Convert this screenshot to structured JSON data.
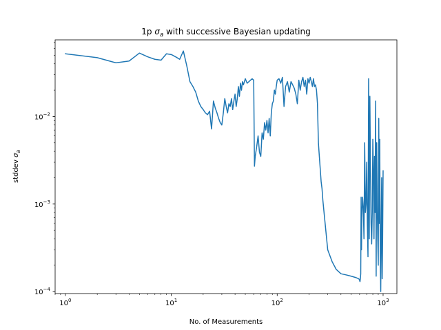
{
  "chart_data": {
    "type": "line",
    "title": "1p σₐ with successive Bayesian updating",
    "title_parts": {
      "pre": "1p ",
      "sym": "σ",
      "sub": "a",
      "post": " with successive Bayesian updating"
    },
    "xlabel": "No. of Measurements",
    "ylabel": "stddev σₐ",
    "ylabel_parts": {
      "pre": "stddev ",
      "sym": "σ",
      "sub": "a"
    },
    "xscale": "log",
    "yscale": "log",
    "xlim": [
      0.8,
      1350
    ],
    "ylim": [
      9.5e-05,
      0.075
    ],
    "grid": false,
    "color": "#1f77b4",
    "x_ticks": [
      {
        "value": 1,
        "base": "10",
        "exp": "0"
      },
      {
        "value": 10,
        "base": "10",
        "exp": "1"
      },
      {
        "value": 100,
        "base": "10",
        "exp": "2"
      },
      {
        "value": 1000,
        "base": "10",
        "exp": "3"
      }
    ],
    "y_ticks": [
      {
        "value": 0.0001,
        "base": "10",
        "exp": "−4"
      },
      {
        "value": 0.001,
        "base": "10",
        "exp": "−3"
      },
      {
        "value": 0.01,
        "base": "10",
        "exp": "−2"
      }
    ],
    "series": [
      {
        "x": [
          1,
          2,
          3,
          4,
          5,
          6,
          7,
          8,
          9,
          10,
          11,
          12,
          13,
          14,
          15,
          16,
          17,
          18,
          19,
          20,
          21,
          22,
          23,
          24,
          25,
          26,
          27,
          28,
          29,
          30,
          31,
          32,
          33,
          34,
          35,
          36,
          37,
          38,
          39,
          40,
          41,
          42,
          43,
          44,
          45,
          46,
          47,
          48,
          50,
          52,
          54,
          56,
          58,
          60,
          61,
          62,
          64,
          66,
          68,
          70,
          72,
          74,
          76,
          78,
          80,
          82,
          84,
          86,
          88,
          90,
          92,
          94,
          96,
          98,
          100,
          104,
          108,
          112,
          116,
          120,
          125,
          130,
          135,
          140,
          145,
          150,
          155,
          160,
          165,
          170,
          175,
          180,
          185,
          190,
          195,
          200,
          205,
          210,
          215,
          220,
          225,
          230,
          235,
          240,
          245,
          250,
          255,
          260,
          265,
          270,
          280,
          300,
          330,
          360,
          400,
          450,
          500,
          550,
          590,
          600,
          605,
          610,
          615,
          620,
          625,
          630,
          640,
          650,
          660,
          670,
          680,
          690,
          700,
          710,
          720,
          730,
          740,
          750,
          760,
          770,
          780,
          790,
          800,
          810,
          820,
          830,
          840,
          850,
          860,
          870,
          880,
          890,
          900,
          910,
          920,
          930,
          940,
          950,
          960,
          970,
          980,
          990,
          1000
        ],
        "y": [
          0.052,
          0.047,
          0.041,
          0.043,
          0.053,
          0.048,
          0.045,
          0.044,
          0.052,
          0.051,
          0.048,
          0.045,
          0.056,
          0.038,
          0.025,
          0.022,
          0.019,
          0.015,
          0.013,
          0.012,
          0.011,
          0.0105,
          0.0115,
          0.0072,
          0.015,
          0.0125,
          0.011,
          0.0095,
          0.0085,
          0.008,
          0.011,
          0.016,
          0.013,
          0.011,
          0.014,
          0.013,
          0.016,
          0.012,
          0.015,
          0.018,
          0.013,
          0.016,
          0.022,
          0.017,
          0.024,
          0.02,
          0.025,
          0.023,
          0.027,
          0.024,
          0.025,
          0.026,
          0.027,
          0.026,
          0.0027,
          0.0035,
          0.0045,
          0.006,
          0.0039,
          0.0035,
          0.0065,
          0.0055,
          0.0085,
          0.007,
          0.009,
          0.0065,
          0.0095,
          0.006,
          0.011,
          0.014,
          0.015,
          0.02,
          0.018,
          0.022,
          0.026,
          0.027,
          0.024,
          0.028,
          0.013,
          0.022,
          0.025,
          0.019,
          0.025,
          0.023,
          0.021,
          0.018,
          0.014,
          0.026,
          0.02,
          0.025,
          0.028,
          0.022,
          0.026,
          0.018,
          0.027,
          0.024,
          0.028,
          0.025,
          0.022,
          0.027,
          0.022,
          0.023,
          0.02,
          0.014,
          0.005,
          0.0035,
          0.0025,
          0.0018,
          0.0015,
          0.0011,
          0.0007,
          0.0003,
          0.00022,
          0.00018,
          0.00016,
          0.000155,
          0.00015,
          0.000145,
          0.00014,
          0.000135,
          0.00013,
          0.00014,
          0.00016,
          0.0012,
          0.0003,
          0.0007,
          0.0012,
          0.0009,
          0.0004,
          0.005,
          0.0008,
          0.001,
          0.003,
          0.0006,
          0.00025,
          0.027,
          0.0004,
          0.017,
          0.0025,
          0.0006,
          0.00035,
          0.0008,
          0.0055,
          0.0025,
          0.0004,
          0.0035,
          0.0008,
          0.015,
          0.00015,
          0.005,
          0.001,
          0.0004,
          0.0002,
          0.0095,
          0.0006,
          0.0055,
          0.00025,
          0.0001,
          0.0006,
          0.002,
          0.00014,
          0.0004,
          0.0024
        ]
      }
    ]
  }
}
